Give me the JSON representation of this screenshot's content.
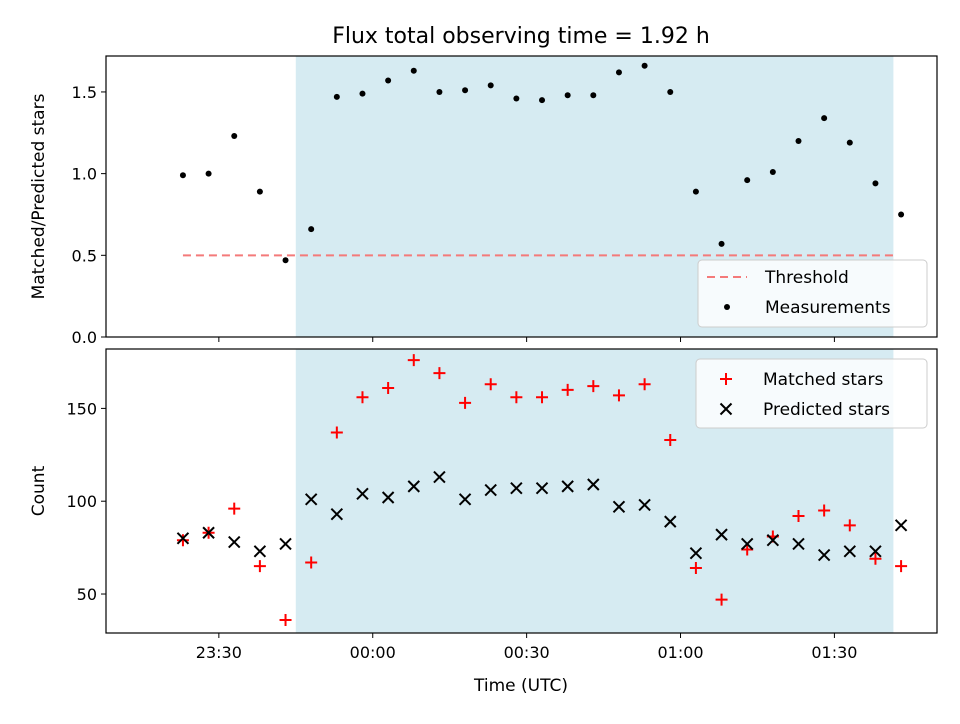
{
  "title": "Flux total observing time = 1.92 h",
  "chart_data": [
    {
      "type": "scatter",
      "ylabel": "Matched/Predicted stars",
      "ylim": [
        0,
        1.72
      ],
      "yticks": [
        "0.0",
        "0.5",
        "1.0",
        "1.5"
      ],
      "ytick_values": [
        0,
        0.5,
        1.0,
        1.5
      ],
      "xrange_minutes": [
        -52,
        110
      ],
      "observing_window_minutes": [
        -15,
        101.5
      ],
      "threshold": {
        "name": "Threshold",
        "value": 0.5,
        "x_start": -37,
        "x_end": 101.5,
        "color": "#f47a7a"
      },
      "series": [
        {
          "name": "Measurements",
          "color": "#000000",
          "x": [
            -37,
            -32,
            -27,
            -22,
            -17,
            -12,
            -7,
            -2,
            3,
            8,
            13,
            18,
            23,
            28,
            33,
            38,
            43,
            48,
            53,
            58,
            63,
            68,
            73,
            78,
            83,
            88,
            93,
            98,
            103
          ],
          "y": [
            0.99,
            1.0,
            1.23,
            0.89,
            0.47,
            0.66,
            1.47,
            1.49,
            1.57,
            1.63,
            1.5,
            1.51,
            1.54,
            1.46,
            1.45,
            1.48,
            1.48,
            1.62,
            1.66,
            1.5,
            0.89,
            0.57,
            0.96,
            1.01,
            1.2,
            1.34,
            1.19,
            0.94,
            0.75
          ]
        }
      ],
      "legend": [
        "Threshold",
        "Measurements"
      ],
      "legend_position": "lower-right"
    },
    {
      "type": "scatter",
      "xlabel": "Time (UTC)",
      "ylabel": "Count",
      "ylim": [
        29,
        182
      ],
      "yticks": [
        "50",
        "100",
        "150"
      ],
      "ytick_values": [
        50,
        100,
        150
      ],
      "xticks": [
        "23:30",
        "00:00",
        "00:30",
        "01:00",
        "01:30"
      ],
      "xtick_values": [
        -30,
        0,
        30,
        60,
        90
      ],
      "series": [
        {
          "name": "Matched stars",
          "color": "#ff0000",
          "marker": "+",
          "x": [
            -37,
            -32,
            -27,
            -22,
            -17,
            -12,
            -7,
            -2,
            3,
            8,
            13,
            18,
            23,
            28,
            33,
            38,
            43,
            48,
            53,
            58,
            63,
            68,
            73,
            78,
            83,
            88,
            93,
            98,
            103
          ],
          "y": [
            79,
            83,
            96,
            65,
            36,
            67,
            137,
            156,
            161,
            176,
            169,
            153,
            163,
            156,
            156,
            160,
            162,
            157,
            163,
            133,
            64,
            47,
            74,
            81,
            92,
            95,
            87,
            69,
            65
          ]
        },
        {
          "name": "Predicted stars",
          "color": "#000000",
          "marker": "x",
          "x": [
            -37,
            -32,
            -27,
            -22,
            -17,
            -12,
            -7,
            -2,
            3,
            8,
            13,
            18,
            23,
            28,
            33,
            38,
            43,
            48,
            53,
            58,
            63,
            68,
            73,
            78,
            83,
            88,
            93,
            98,
            103
          ],
          "y": [
            80,
            83,
            78,
            73,
            77,
            101,
            93,
            104,
            102,
            108,
            113,
            101,
            106,
            107,
            107,
            108,
            109,
            97,
            98,
            89,
            72,
            82,
            77,
            79,
            77,
            71,
            73,
            73,
            87
          ]
        }
      ],
      "legend": [
        "Matched stars",
        "Predicted stars"
      ],
      "legend_position": "upper-right"
    }
  ]
}
